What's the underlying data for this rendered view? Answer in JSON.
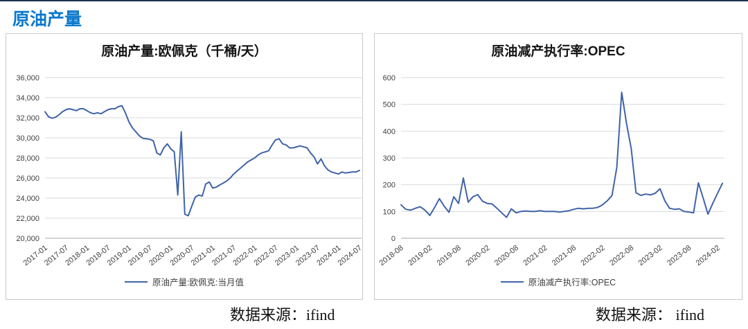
{
  "page": {
    "title": "原油产量",
    "sources": {
      "left": "数据来源：ifind",
      "right": "数据来源：  ifind"
    }
  },
  "colors": {
    "accent_blue": "#0A78CC",
    "line_blue": "#3F63A8",
    "grid_gray": "#D9D9D9"
  },
  "chart_data": [
    {
      "type": "line",
      "title": "原油产量:欧佩克（千桶/天）",
      "legend": "原油产量:欧佩克:当月值",
      "xlabel": "",
      "ylabel": "",
      "grid": true,
      "legend_position": "bottom",
      "line_color": "#3F63A8",
      "ylim": [
        20000,
        36000
      ],
      "y_tick_labels": [
        "36,000",
        "34,000",
        "32,000",
        "30,000",
        "28,000",
        "26,000",
        "24,000",
        "22,000",
        "20,000"
      ],
      "x_tick_labels": [
        "2017-01",
        "2017-07",
        "2018-01",
        "2018-07",
        "2019-01",
        "2019-07",
        "2020-01",
        "2020-07",
        "2021-01",
        "2021-07",
        "2022-01",
        "2022-07",
        "2023-01",
        "2023-07",
        "2024-01",
        "2024-07"
      ],
      "x_tick_interval_months": 6,
      "series": [
        {
          "name": "原油产量:欧佩克:当月值",
          "values": [
            32600,
            32100,
            31950,
            32050,
            32300,
            32600,
            32800,
            32900,
            32800,
            32700,
            32900,
            32900,
            32700,
            32500,
            32400,
            32500,
            32400,
            32600,
            32800,
            32900,
            32900,
            33100,
            33200,
            32500,
            31600,
            31000,
            30600,
            30200,
            29950,
            29900,
            29850,
            29700,
            28500,
            28300,
            29000,
            29400,
            28900,
            28600,
            24300,
            30600,
            22400,
            22250,
            23200,
            24100,
            24300,
            24200,
            25400,
            25600,
            25000,
            25100,
            25300,
            25500,
            25700,
            26000,
            26400,
            26700,
            27000,
            27300,
            27600,
            27800,
            28000,
            28300,
            28500,
            28600,
            28700,
            29300,
            29800,
            29900,
            29400,
            29300,
            29000,
            29000,
            29100,
            29200,
            29100,
            29000,
            28500,
            28100,
            27400,
            27900,
            27200,
            26800,
            26600,
            26500,
            26400,
            26600,
            26500,
            26550,
            26600,
            26600,
            26750
          ]
        }
      ]
    },
    {
      "type": "line",
      "title": "原油减产执行率:OPEC",
      "legend": "原油减产执行率:OPEC",
      "xlabel": "",
      "ylabel": "",
      "grid": true,
      "legend_position": "bottom",
      "line_color": "#3F63A8",
      "ylim": [
        0,
        600
      ],
      "y_tick_labels": [
        "600",
        "500",
        "400",
        "300",
        "200",
        "100",
        "0"
      ],
      "x_tick_labels": [
        "2018-08",
        "2019-02",
        "2019-08",
        "2020-02",
        "2020-08",
        "2021-02",
        "2021-08",
        "2022-02",
        "2022-08",
        "2023-02",
        "2023-08",
        "2024-02"
      ],
      "x_tick_interval_months": 6,
      "series": [
        {
          "name": "原油减产执行率:OPEC",
          "values": [
            125,
            108,
            105,
            112,
            118,
            105,
            85,
            115,
            148,
            120,
            97,
            155,
            130,
            225,
            135,
            155,
            163,
            138,
            130,
            128,
            112,
            95,
            78,
            110,
            95,
            100,
            102,
            100,
            100,
            103,
            100,
            100,
            100,
            98,
            100,
            103,
            108,
            112,
            110,
            112,
            112,
            115,
            125,
            140,
            160,
            265,
            545,
            430,
            335,
            170,
            160,
            165,
            162,
            168,
            185,
            140,
            112,
            108,
            110,
            100,
            98,
            95,
            207,
            150,
            90,
            130,
            168,
            205
          ]
        }
      ]
    }
  ]
}
